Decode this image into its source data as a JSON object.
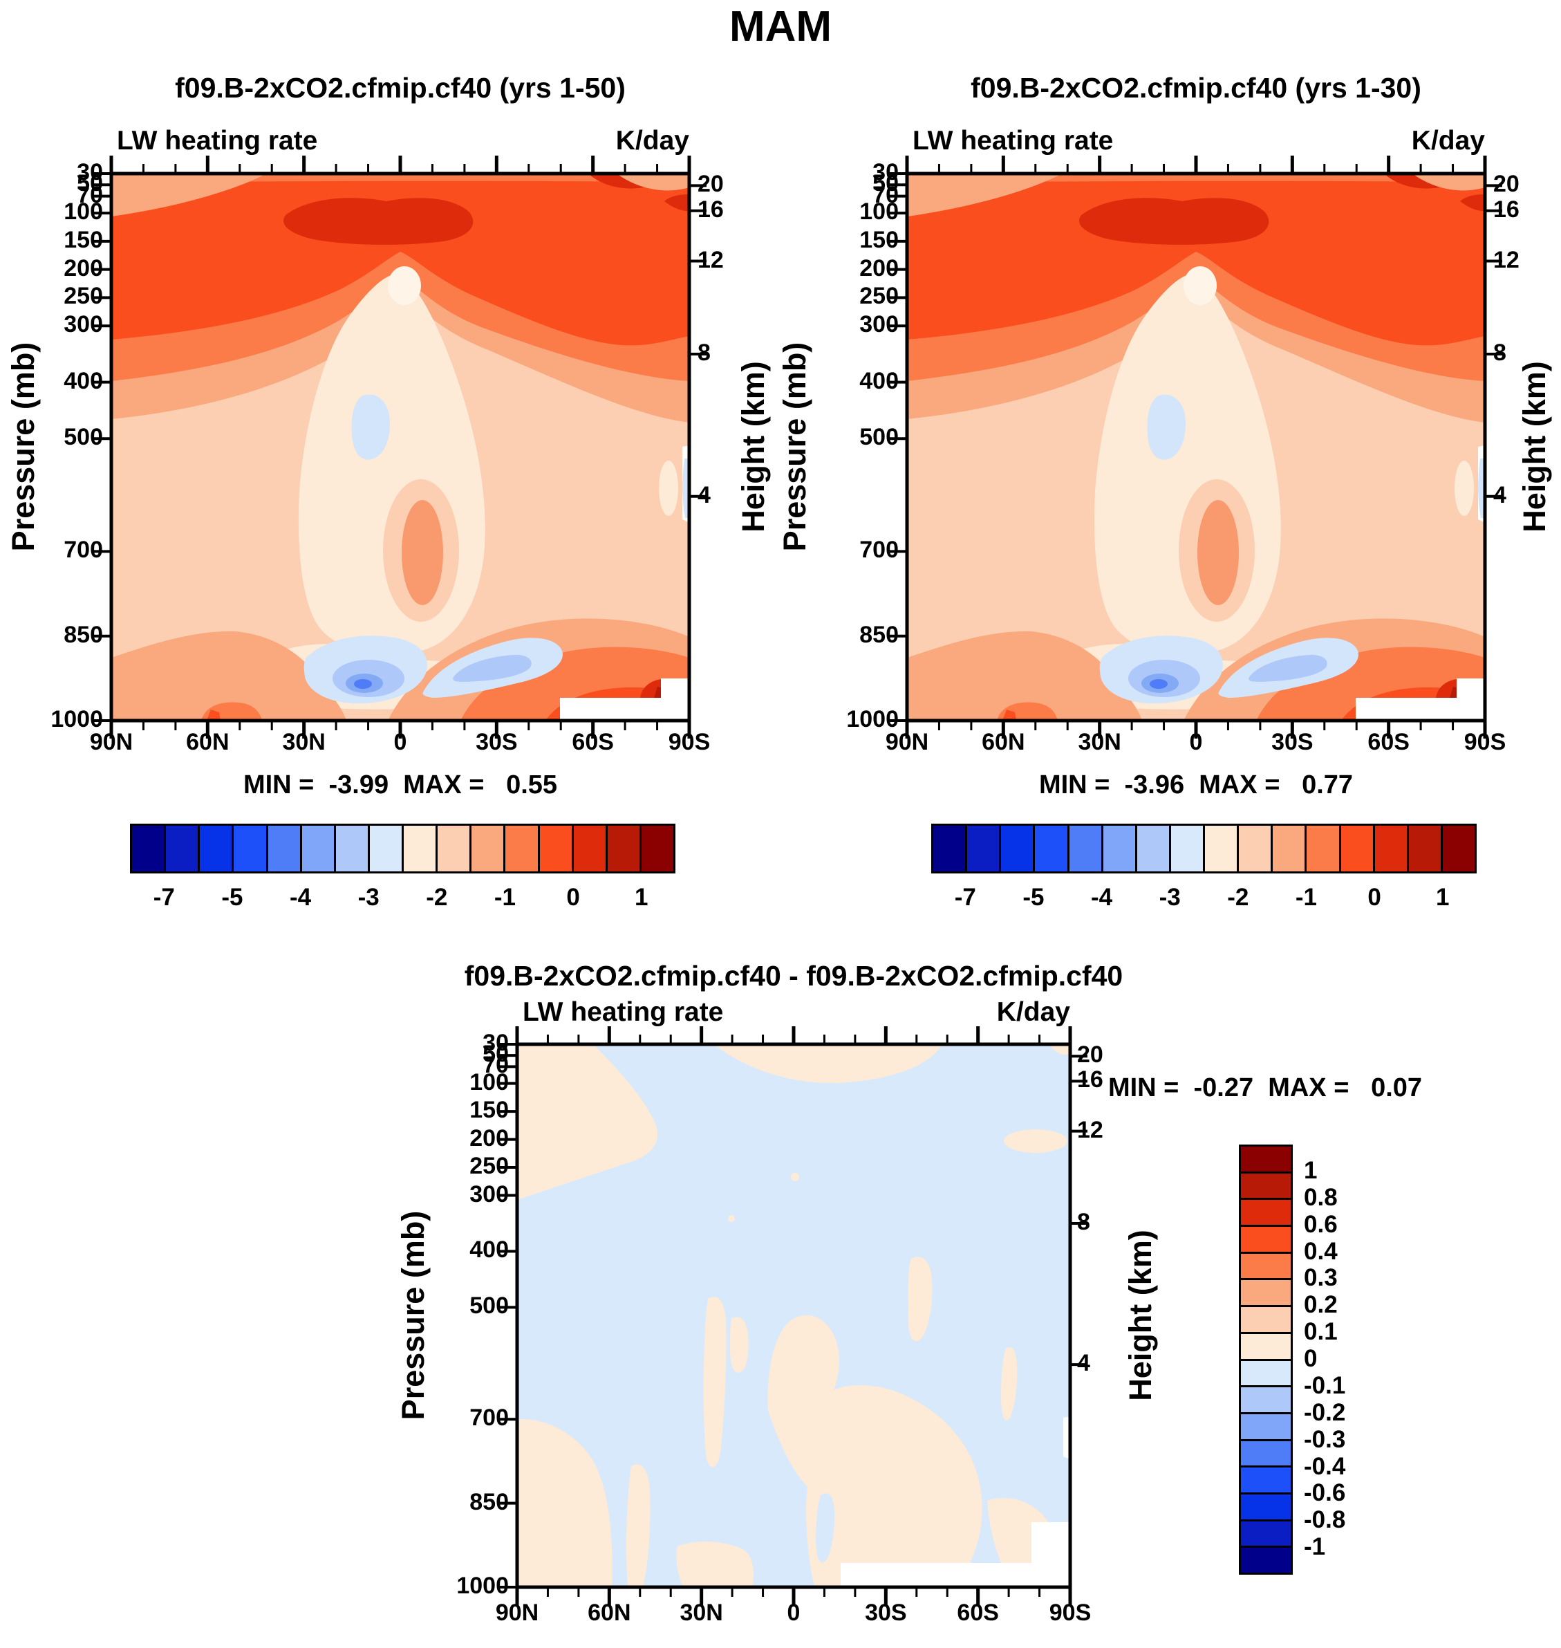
{
  "figure_title": "MAM",
  "panels": [
    {
      "title": "f09.B-2xCO2.cfmip.cf40 (yrs 1-50)",
      "field_label": "LW heating rate",
      "units_label": "K/day",
      "y_axis_label": "Pressure (mb)",
      "y2_axis_label": "Height (km)",
      "min_max": "MIN =  -3.99  MAX =   0.55"
    },
    {
      "title": "f09.B-2xCO2.cfmip.cf40 (yrs 1-30)",
      "field_label": "LW heating rate",
      "units_label": "K/day",
      "y_axis_label": "Pressure (mb)",
      "y2_axis_label": "Height (km)",
      "min_max": "MIN =  -3.96  MAX =   0.77"
    },
    {
      "title": "f09.B-2xCO2.cfmip.cf40 - f09.B-2xCO2.cfmip.cf40",
      "field_label": "LW heating rate",
      "units_label": "K/day",
      "y_axis_label": "Pressure (mb)",
      "y2_axis_label": "Height (km)",
      "min_max": "MIN =  -0.27  MAX =   0.07"
    }
  ],
  "axes": {
    "pressure_ticks": [
      "30",
      "50",
      "70",
      "100",
      "150",
      "200",
      "250",
      "300",
      "400",
      "500",
      "700",
      "850",
      "1000"
    ],
    "height_ticks": [
      "20",
      "16",
      "12",
      "8",
      "4"
    ],
    "lat_ticks": [
      "90N",
      "60N",
      "30N",
      "0",
      "30S",
      "60S",
      "90S"
    ]
  },
  "colorbar_main": {
    "orientation": "horizontal",
    "colors": [
      "#00008B",
      "#0B1EC4",
      "#0733E8",
      "#1E50FA",
      "#4E7DF7",
      "#80A6F9",
      "#AFC8FA",
      "#D8E9FC",
      "#FDEBD7",
      "#FCCFB3",
      "#FAA87E",
      "#FB7B49",
      "#FA4E1E",
      "#DE2B0B",
      "#B71B07",
      "#8B0000"
    ],
    "levels": [
      -7,
      -6,
      -5,
      -4.5,
      -4,
      -3.5,
      -3,
      -2.5,
      -2,
      -1.5,
      -1,
      -0.5,
      0,
      0.5,
      1
    ],
    "labels": [
      {
        "text": "-7",
        "b": 1
      },
      {
        "text": "-5",
        "b": 3
      },
      {
        "text": "-4",
        "b": 5
      },
      {
        "text": "-3",
        "b": 7
      },
      {
        "text": "-2",
        "b": 9
      },
      {
        "text": "-1",
        "b": 11
      },
      {
        "text": "0",
        "b": 13
      },
      {
        "text": "1",
        "b": 15
      }
    ]
  },
  "colorbar_diff": {
    "orientation": "vertical",
    "colors_top_to_bottom": [
      "#8B0000",
      "#B71B07",
      "#DE2B0B",
      "#FA4E1E",
      "#FB7B49",
      "#FAA87E",
      "#FCCFB3",
      "#FDEBD7",
      "#D8E9FC",
      "#AFC8FA",
      "#80A6F9",
      "#4E7DF7",
      "#1E50FA",
      "#0733E8",
      "#0B1EC4",
      "#00008B"
    ],
    "levels": [
      -1,
      -0.8,
      -0.6,
      -0.4,
      -0.3,
      -0.2,
      -0.1,
      0,
      0.1,
      0.2,
      0.3,
      0.4,
      0.6,
      0.8,
      1
    ],
    "labels": [
      {
        "text": "1",
        "b": 1
      },
      {
        "text": "0.8",
        "b": 2
      },
      {
        "text": "0.6",
        "b": 3
      },
      {
        "text": "0.4",
        "b": 4
      },
      {
        "text": "0.3",
        "b": 5
      },
      {
        "text": "0.2",
        "b": 6
      },
      {
        "text": "0.1",
        "b": 7
      },
      {
        "text": "0",
        "b": 8
      },
      {
        "text": "-0.1",
        "b": 9
      },
      {
        "text": "-0.2",
        "b": 10
      },
      {
        "text": "-0.3",
        "b": 11
      },
      {
        "text": "-0.4",
        "b": 12
      },
      {
        "text": "-0.6",
        "b": 13
      },
      {
        "text": "-0.8",
        "b": 14
      },
      {
        "text": "-1",
        "b": 15
      }
    ]
  },
  "chart_data": [
    {
      "type": "contour",
      "panel": "top-left",
      "title": "f09.B-2xCO2.cfmip.cf40 (yrs 1-50)",
      "variable": "LW heating rate",
      "units": "K/day",
      "season": "MAM",
      "x_axis": {
        "label": "Latitude",
        "ticks": [
          "90N",
          "60N",
          "30N",
          "0",
          "30S",
          "60S",
          "90S"
        ],
        "minor_tick_step_deg": 10
      },
      "y_axis_left": {
        "label": "Pressure (mb)",
        "ticks": [
          30,
          50,
          70,
          100,
          150,
          200,
          250,
          300,
          400,
          500,
          700,
          850,
          1000
        ],
        "scale": "linear-pressure"
      },
      "y_axis_right": {
        "label": "Height (km)",
        "ticks": [
          20,
          16,
          12,
          8,
          4
        ]
      },
      "contour_levels": [
        -7,
        -6,
        -5,
        -4.5,
        -4,
        -3.5,
        -3,
        -2.5,
        -2,
        -1.5,
        -1,
        -0.5,
        0,
        0.5,
        1
      ],
      "min": -3.99,
      "max": 0.55,
      "features": [
        "strong cooling band (-3 to -2.5 K/day) spanning ~100-250 mb at all latitudes",
        "darkest cooling maximum blob near 70-100 mb between ~25N and 15S",
        "weak values (-0.5 to 0) in a broad mid-tropospheric dome 300-850 mb",
        "small positive cell embedded near the equator around 600-800 mb",
        "shallow strong-cooling blue cells (-4 to -3) near 850-950 mb around 10N and 25S-45S",
        "near-surface heating (0.5 to 1) adjacent to the Antarctic white terrain mask",
        "white terrain mask below ~970 mb poleward of ~50S"
      ]
    },
    {
      "type": "contour",
      "panel": "top-right",
      "title": "f09.B-2xCO2.cfmip.cf40 (yrs 1-30)",
      "variable": "LW heating rate",
      "units": "K/day",
      "season": "MAM",
      "x_axis": {
        "label": "Latitude",
        "ticks": [
          "90N",
          "60N",
          "30N",
          "0",
          "30S",
          "60S",
          "90S"
        ],
        "minor_tick_step_deg": 10
      },
      "y_axis_left": {
        "label": "Pressure (mb)",
        "ticks": [
          30,
          50,
          70,
          100,
          150,
          200,
          250,
          300,
          400,
          500,
          700,
          850,
          1000
        ],
        "scale": "linear-pressure"
      },
      "y_axis_right": {
        "label": "Height (km)",
        "ticks": [
          20,
          16,
          12,
          8,
          4
        ]
      },
      "contour_levels": [
        -7,
        -6,
        -5,
        -4.5,
        -4,
        -3.5,
        -3,
        -2.5,
        -2,
        -1.5,
        -1,
        -0.5,
        0,
        0.5,
        1
      ],
      "min": -3.96,
      "max": 0.77,
      "features": [
        "pattern nearly identical to the yrs 1-50 panel",
        "strong cooling band 100-250 mb, maximum blob near 70-100 mb in the tropics",
        "weak-cooling mid-tropospheric dome, low-level blue cooling cells near 900 mb",
        "near-surface heating beside the Antarctic white terrain mask"
      ]
    },
    {
      "type": "contour",
      "panel": "bottom-difference",
      "title": "f09.B-2xCO2.cfmip.cf40 - f09.B-2xCO2.cfmip.cf40",
      "variable": "LW heating rate difference",
      "units": "K/day",
      "season": "MAM",
      "x_axis": {
        "label": "Latitude",
        "ticks": [
          "90N",
          "60N",
          "30N",
          "0",
          "30S",
          "60S",
          "90S"
        ],
        "minor_tick_step_deg": 10
      },
      "y_axis_left": {
        "label": "Pressure (mb)",
        "ticks": [
          30,
          50,
          70,
          100,
          150,
          200,
          250,
          300,
          400,
          500,
          700,
          850,
          1000
        ],
        "scale": "linear-pressure"
      },
      "y_axis_right": {
        "label": "Height (km)",
        "ticks": [
          20,
          16,
          12,
          8,
          4
        ]
      },
      "contour_levels": [
        -1,
        -0.8,
        -0.6,
        -0.4,
        -0.3,
        -0.2,
        -0.1,
        0,
        0.1,
        0.2,
        0.3,
        0.4,
        0.6,
        0.8,
        1
      ],
      "min": -0.27,
      "max": 0.07,
      "features": [
        "differences everywhere between -0.3 and 0.1 K/day",
        "weak negative (-0.1 to 0, light blue) over most of the section",
        "weak positive (0 to 0.1, light peach) in the NH stratosphere wedge, a thin tropical band near 30-70 mb, scattered tropical mid-level streaks, and patchy lower troposphere",
        "white terrain mask at bottom right poleward of ~55S"
      ]
    }
  ]
}
